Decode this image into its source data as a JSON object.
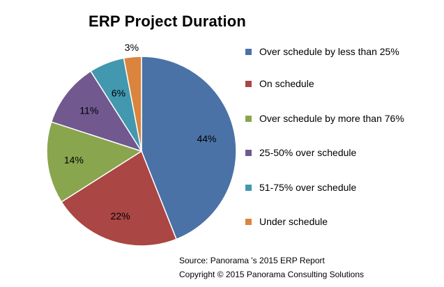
{
  "chart_data": {
    "type": "pie",
    "title": "ERP Project Duration",
    "slices": [
      {
        "label": "Over schedule by less than 25%",
        "value": 44,
        "display": "44%",
        "color": "#4a72a6"
      },
      {
        "label": "On schedule",
        "value": 22,
        "display": "22%",
        "color": "#aa4643"
      },
      {
        "label": "Over schedule by more than 76%",
        "value": 14,
        "display": "14%",
        "color": "#89a54e"
      },
      {
        "label": "25-50% over schedule",
        "value": 11,
        "display": "11%",
        "color": "#71588f"
      },
      {
        "label": "51-75% over schedule",
        "value": 6,
        "display": "6%",
        "color": "#4198af"
      },
      {
        "label": "Under schedule",
        "value": 3,
        "display": "3%",
        "color": "#db843d"
      }
    ],
    "legend_position": "right"
  },
  "source": {
    "line1": "Source: Panorama 's 2015 ERP Report",
    "line2": "Copyright © 2015 Panorama Consulting Solutions"
  }
}
